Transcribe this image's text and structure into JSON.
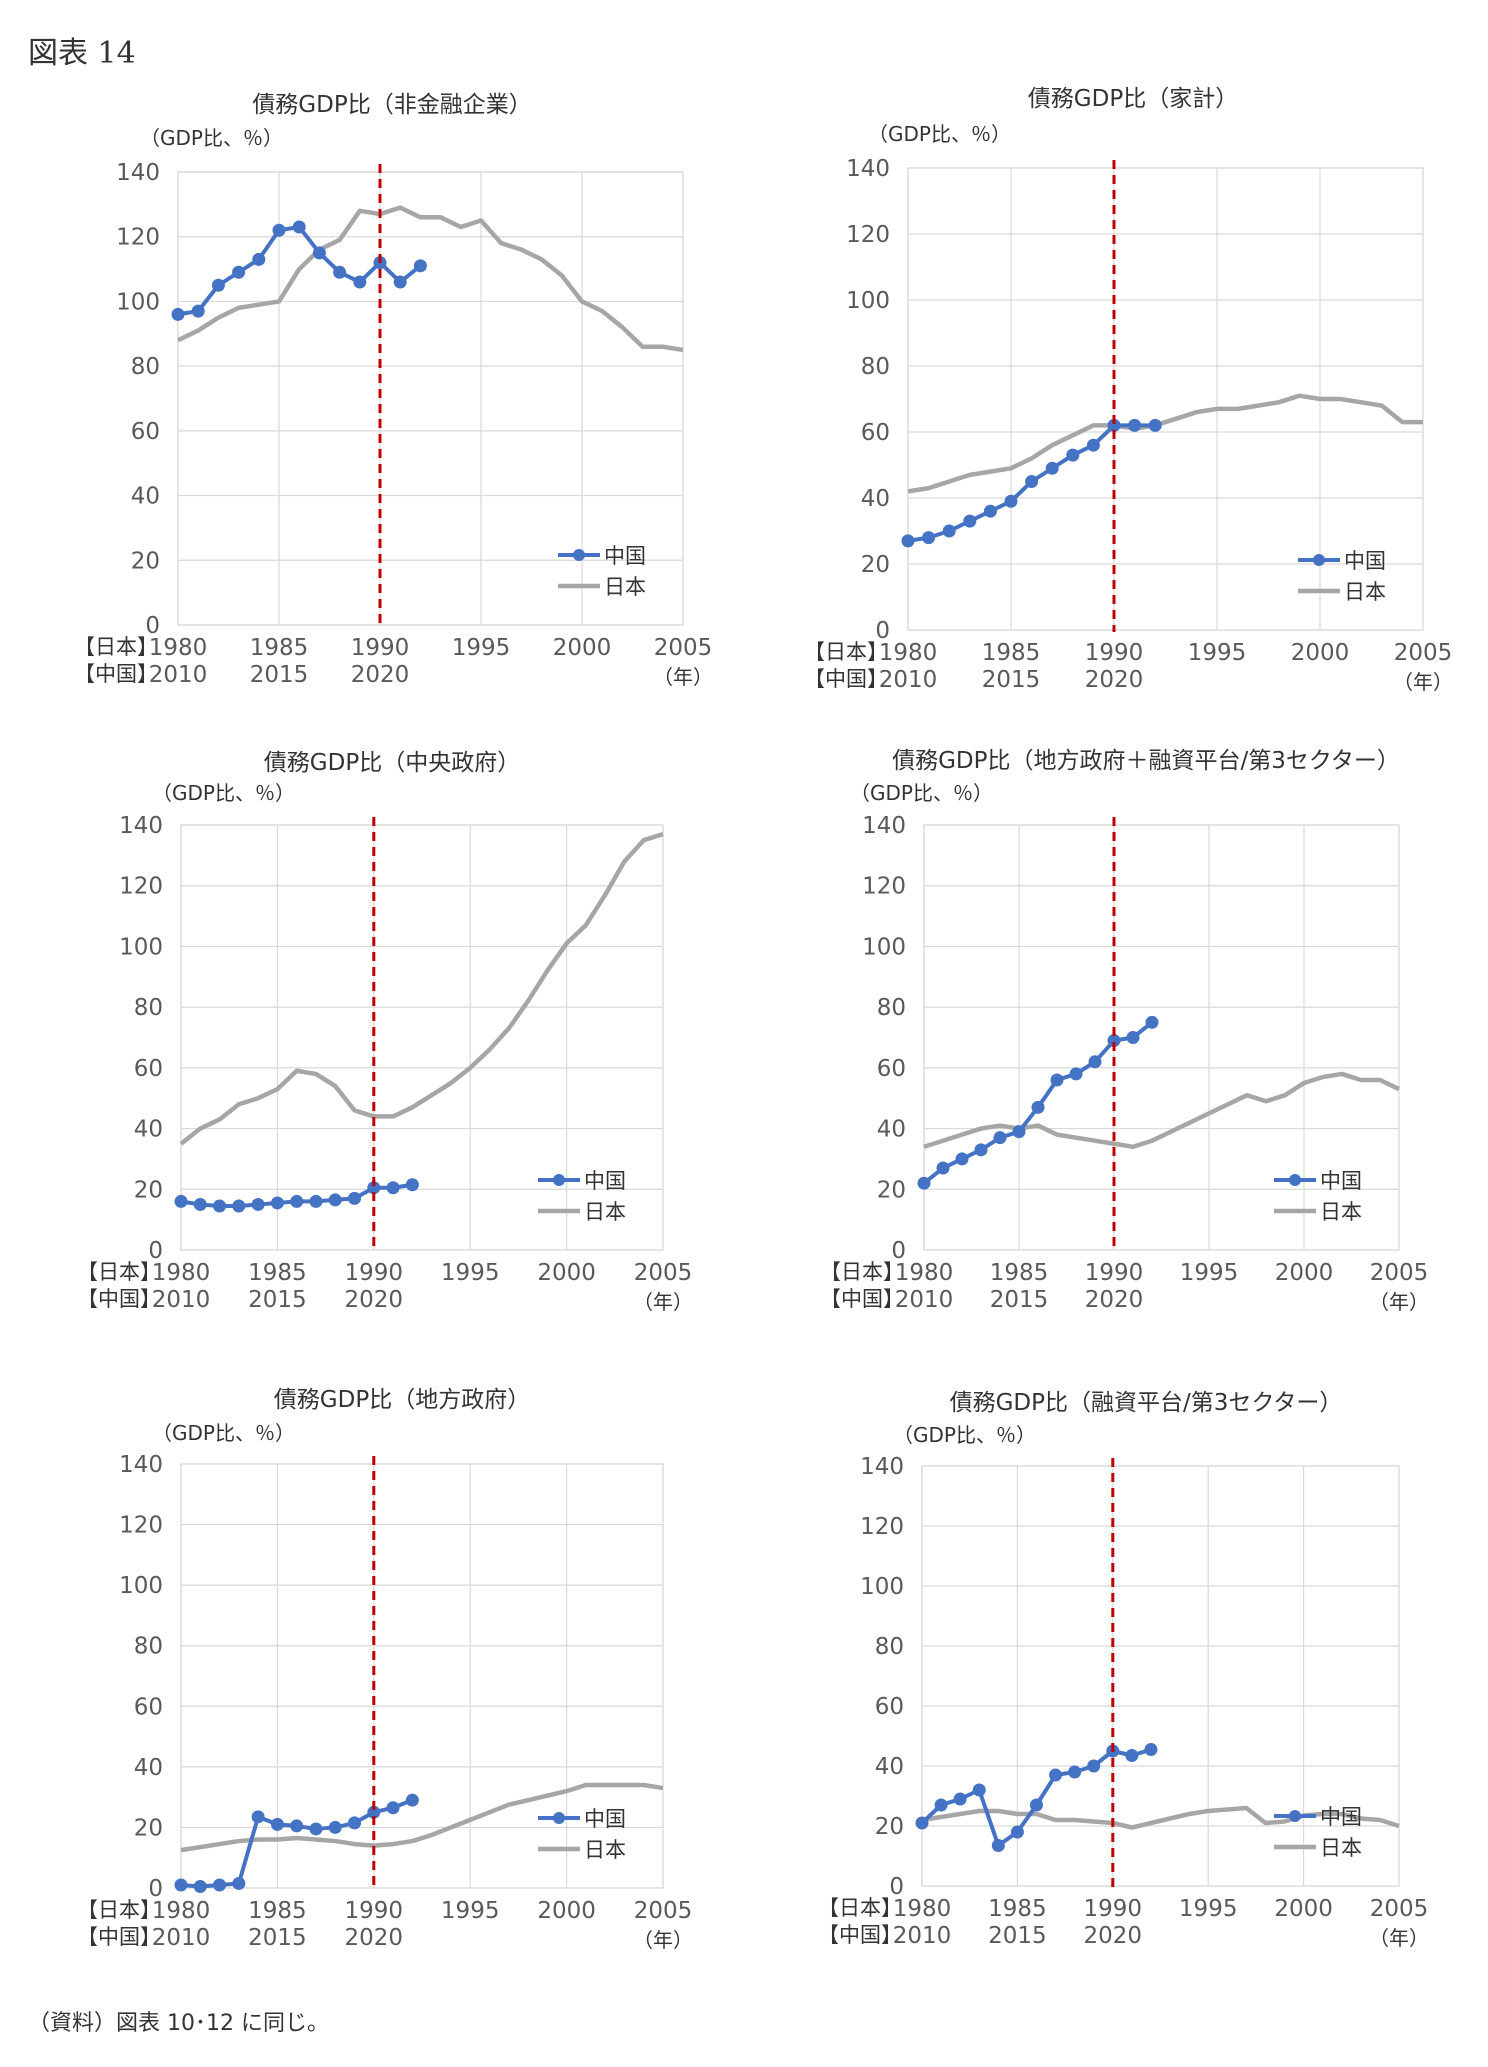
{
  "figure_label": "図表 14",
  "source_note": "（資料）図表 10･12 に同じ。",
  "colors": {
    "china": "#4472C4",
    "japan": "#A6A6A6",
    "marker_line": "#C00000",
    "grid": "#D9D9D9"
  },
  "common": {
    "unit_label": "（GDP比、％）",
    "y_ticks": [
      "0",
      "20",
      "40",
      "60",
      "80",
      "100",
      "120",
      "140"
    ],
    "x_ticks_japan": [
      "1980",
      "1985",
      "1990",
      "1995",
      "2000",
      "2005"
    ],
    "x_ticks_china": [
      "2010",
      "2015",
      "2020"
    ],
    "era_japan_label": "【日本】",
    "era_china_label": "【中国】",
    "year_unit": "（年）",
    "legend_china": "中国",
    "legend_japan": "日本"
  },
  "chart_data": [
    {
      "type": "line",
      "title": "債務GDP比（非金融企業）",
      "ylim": [
        0,
        140
      ],
      "xlim": [
        1980,
        2005
      ],
      "vline_x": 1990,
      "series": [
        {
          "name": "中国",
          "x": [
            1980,
            1981,
            1982,
            1983,
            1984,
            1985,
            1986,
            1987,
            1988,
            1989,
            1990,
            1991,
            1992
          ],
          "values": [
            96,
            97,
            105,
            109,
            113,
            122,
            123,
            115,
            109,
            106,
            112,
            106,
            111
          ]
        },
        {
          "name": "日本",
          "x": [
            1980,
            1981,
            1982,
            1983,
            1984,
            1985,
            1986,
            1987,
            1988,
            1989,
            1990,
            1991,
            1992,
            1993,
            1994,
            1995,
            1996,
            1997,
            1998,
            1999,
            2000,
            2001,
            2002,
            2003,
            2004,
            2005
          ],
          "values": [
            88,
            91,
            95,
            98,
            99,
            100,
            110,
            116,
            119,
            128,
            127,
            129,
            126,
            126,
            123,
            125,
            118,
            116,
            113,
            108,
            100,
            97,
            92,
            86,
            86,
            85
          ]
        }
      ]
    },
    {
      "type": "line",
      "title": "債務GDP比（家計）",
      "ylim": [
        0,
        140
      ],
      "xlim": [
        1980,
        2005
      ],
      "vline_x": 1990,
      "series": [
        {
          "name": "中国",
          "x": [
            1980,
            1981,
            1982,
            1983,
            1984,
            1985,
            1986,
            1987,
            1988,
            1989,
            1990,
            1991,
            1992
          ],
          "values": [
            27,
            28,
            30,
            33,
            36,
            39,
            45,
            49,
            53,
            56,
            62,
            62,
            62
          ]
        },
        {
          "name": "日本",
          "x": [
            1980,
            1981,
            1982,
            1983,
            1984,
            1985,
            1986,
            1987,
            1988,
            1989,
            1990,
            1991,
            1992,
            1993,
            1994,
            1995,
            1996,
            1997,
            1998,
            1999,
            2000,
            2001,
            2002,
            2003,
            2004,
            2005
          ],
          "values": [
            42,
            43,
            45,
            47,
            48,
            49,
            52,
            56,
            59,
            62,
            62,
            61,
            62,
            64,
            66,
            67,
            67,
            68,
            69,
            71,
            70,
            70,
            69,
            68,
            63,
            63
          ]
        }
      ]
    },
    {
      "type": "line",
      "title": "債務GDP比（中央政府）",
      "ylim": [
        0,
        140
      ],
      "xlim": [
        1980,
        2005
      ],
      "vline_x": 1990,
      "series": [
        {
          "name": "中国",
          "x": [
            1980,
            1981,
            1982,
            1983,
            1984,
            1985,
            1986,
            1987,
            1988,
            1989,
            1990,
            1991,
            1992
          ],
          "values": [
            16,
            15,
            14.5,
            14.5,
            15,
            15.5,
            16,
            16,
            16.5,
            17,
            20.5,
            20.5,
            21.5
          ]
        },
        {
          "name": "日本",
          "x": [
            1980,
            1981,
            1982,
            1983,
            1984,
            1985,
            1986,
            1987,
            1988,
            1989,
            1990,
            1991,
            1992,
            1993,
            1994,
            1995,
            1996,
            1997,
            1998,
            1999,
            2000,
            2001,
            2002,
            2003,
            2004,
            2005
          ],
          "values": [
            35,
            40,
            43,
            48,
            50,
            53,
            59,
            58,
            54,
            46,
            44,
            44,
            47,
            51,
            55,
            60,
            66,
            73,
            82,
            92,
            101,
            107,
            117,
            128,
            135,
            137
          ]
        }
      ]
    },
    {
      "type": "line",
      "title": "債務GDP比（地方政府＋融資平台/第3セクター）",
      "ylim": [
        0,
        140
      ],
      "xlim": [
        1980,
        2005
      ],
      "vline_x": 1990,
      "series": [
        {
          "name": "中国",
          "x": [
            1980,
            1981,
            1982,
            1983,
            1984,
            1985,
            1986,
            1987,
            1988,
            1989,
            1990,
            1991,
            1992
          ],
          "values": [
            22,
            27,
            30,
            33,
            37,
            39,
            47,
            56,
            58,
            62,
            69,
            70,
            75
          ]
        },
        {
          "name": "日本",
          "x": [
            1980,
            1981,
            1982,
            1983,
            1984,
            1985,
            1986,
            1987,
            1988,
            1989,
            1990,
            1991,
            1992,
            1993,
            1994,
            1995,
            1996,
            1997,
            1998,
            1999,
            2000,
            2001,
            2002,
            2003,
            2004,
            2005
          ],
          "values": [
            34,
            36,
            38,
            40,
            41,
            40,
            41,
            38,
            37,
            36,
            35,
            34,
            36,
            39,
            42,
            45,
            48,
            51,
            49,
            51,
            55,
            57,
            58,
            56,
            56,
            53
          ]
        }
      ]
    },
    {
      "type": "line",
      "title": "債務GDP比（地方政府）",
      "ylim": [
        0,
        140
      ],
      "xlim": [
        1980,
        2005
      ],
      "vline_x": 1990,
      "series": [
        {
          "name": "中国",
          "x": [
            1980,
            1981,
            1982,
            1983,
            1984,
            1985,
            1986,
            1987,
            1988,
            1989,
            1990,
            1991,
            1992
          ],
          "values": [
            1,
            0.5,
            1,
            1.5,
            23.5,
            21,
            20.5,
            19.5,
            20,
            21.5,
            25,
            26.5,
            29
          ]
        },
        {
          "name": "日本",
          "x": [
            1980,
            1981,
            1982,
            1983,
            1984,
            1985,
            1986,
            1987,
            1988,
            1989,
            1990,
            1991,
            1992,
            1993,
            1994,
            1995,
            1996,
            1997,
            1998,
            1999,
            2000,
            2001,
            2002,
            2003,
            2004,
            2005
          ],
          "values": [
            12.5,
            13.5,
            14.5,
            15.5,
            16,
            16,
            16.5,
            16,
            15.5,
            14.5,
            14,
            14.5,
            15.5,
            17.5,
            20,
            22.5,
            25,
            27.5,
            29,
            30.5,
            32,
            34,
            34,
            34,
            34,
            33
          ]
        }
      ]
    },
    {
      "type": "line",
      "title": "債務GDP比（融資平台/第3セクター）",
      "ylim": [
        0,
        140
      ],
      "xlim": [
        1980,
        2005
      ],
      "vline_x": 1990,
      "series": [
        {
          "name": "中国",
          "x": [
            1980,
            1981,
            1982,
            1983,
            1984,
            1985,
            1986,
            1987,
            1988,
            1989,
            1990,
            1991,
            1992
          ],
          "values": [
            21,
            27,
            29,
            32,
            13.5,
            18,
            27,
            37,
            38,
            40,
            45,
            43.5,
            45.5
          ]
        },
        {
          "name": "日本",
          "x": [
            1980,
            1981,
            1982,
            1983,
            1984,
            1985,
            1986,
            1987,
            1988,
            1989,
            1990,
            1991,
            1992,
            1993,
            1994,
            1995,
            1996,
            1997,
            1998,
            1999,
            2000,
            2001,
            2002,
            2003,
            2004,
            2005
          ],
          "values": [
            22,
            23,
            24,
            25,
            25,
            24,
            24,
            22,
            22,
            21.5,
            21,
            19.5,
            21,
            22.5,
            24,
            25,
            25.5,
            26,
            21,
            21.5,
            23.5,
            24,
            24,
            22.5,
            22,
            20
          ]
        }
      ]
    }
  ]
}
